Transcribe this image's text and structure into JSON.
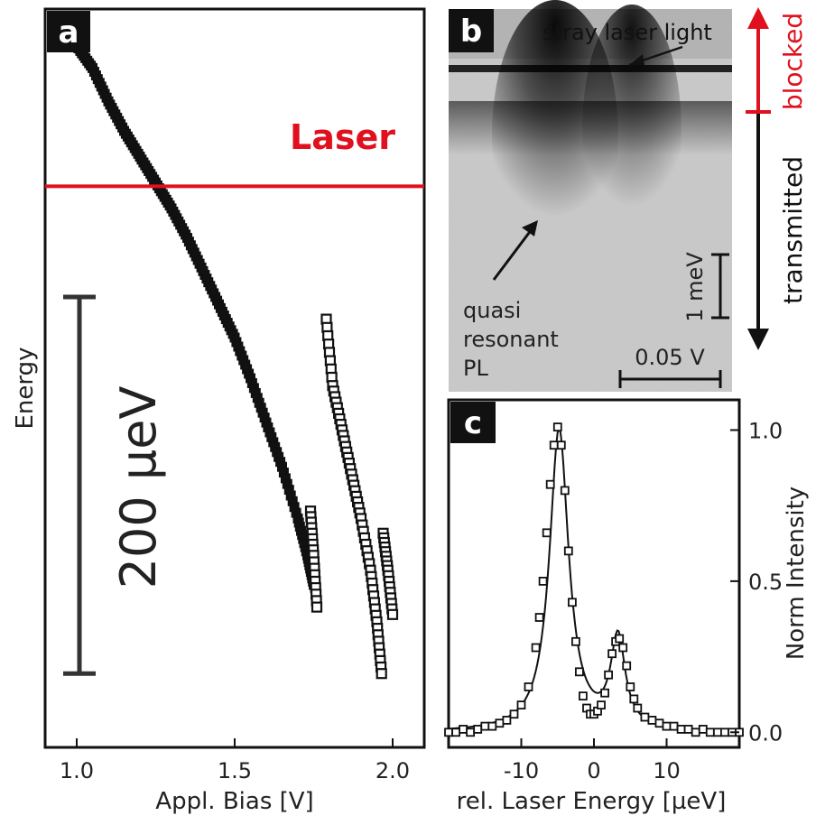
{
  "colors": {
    "laser": "#e0101e",
    "ink": "#111111",
    "blocked": "#e0101e",
    "transmitted": "#111111"
  },
  "panels": {
    "a": {
      "letter": "a"
    },
    "b": {
      "letter": "b"
    },
    "c": {
      "letter": "c"
    }
  },
  "chart_data": [
    {
      "id": "a",
      "type": "scatter",
      "xlabel": "Appl. Bias [V]",
      "ylabel": "Energy",
      "xlim": [
        0.9,
        2.1
      ],
      "ylim": [
        0,
        1
      ],
      "xticks": [
        1.0,
        1.5,
        2.0
      ],
      "xtick_labels": [
        "1.0",
        "1.5",
        "2.0"
      ],
      "annotations": {
        "laser_label": "Laser",
        "laser_level": 0.76,
        "scalebar_label": "200 µeV",
        "scalebar_range": [
          0.1,
          0.61
        ]
      },
      "series": [
        {
          "style": "filled",
          "x": [
            1.0,
            1.05,
            1.1,
            1.15,
            1.2,
            1.25,
            1.3,
            1.35,
            1.4,
            1.45,
            1.5,
            1.55,
            1.6,
            1.65,
            1.7,
            1.73,
            1.75
          ],
          "y": [
            0.95,
            0.92,
            0.875,
            0.835,
            0.8,
            0.765,
            0.73,
            0.69,
            0.645,
            0.6,
            0.555,
            0.5,
            0.44,
            0.38,
            0.31,
            0.26,
            0.22
          ]
        },
        {
          "style": "open",
          "x": [
            1.74,
            1.75,
            1.76
          ],
          "y": [
            0.32,
            0.26,
            0.19
          ]
        },
        {
          "style": "open",
          "x": [
            1.79,
            1.81,
            1.84,
            1.87,
            1.9,
            1.93,
            1.95,
            1.965
          ],
          "y": [
            0.58,
            0.49,
            0.43,
            0.37,
            0.31,
            0.24,
            0.17,
            0.1
          ]
        },
        {
          "style": "open",
          "x": [
            1.97,
            1.985,
            2.0
          ],
          "y": [
            0.29,
            0.24,
            0.18
          ]
        }
      ]
    },
    {
      "id": "b",
      "type": "heatmap",
      "annotations": {
        "stray": "stray laser light",
        "quasi": [
          "quasi",
          "resonant",
          "PL"
        ],
        "energy_scale": "1 meV",
        "voltage_scale": "0.05 V",
        "blocked": "blocked",
        "transmitted": "transmitted"
      }
    },
    {
      "id": "c",
      "type": "scatter",
      "xlabel": "rel. Laser Energy [µeV]",
      "ylabel": "Norm Intensity",
      "xlim": [
        -20,
        20
      ],
      "ylim": [
        -0.05,
        1.1
      ],
      "xticks": [
        -10,
        0,
        10
      ],
      "xtick_labels": [
        "-10",
        "0",
        "10"
      ],
      "yticks": [
        0.0,
        0.5,
        1.0
      ],
      "ytick_labels": [
        "0.0",
        "0.5",
        "1.0"
      ],
      "fit": {
        "peaks": [
          {
            "x0": -4.8,
            "amp": 1.0,
            "width": 3.2
          },
          {
            "x0": 3.3,
            "amp": 0.3,
            "width": 2.4
          }
        ],
        "baseline": 0.0
      },
      "series": [
        {
          "name": "",
          "style": "open",
          "x": [
            -20,
            -19,
            -18,
            -17,
            -16,
            -15,
            -14,
            -13,
            -12,
            -11,
            -10,
            -9,
            -8,
            -7.5,
            -7,
            -6.5,
            -6,
            -5.5,
            -5,
            -4.5,
            -4,
            -3.5,
            -3,
            -2.5,
            -2,
            -1.5,
            -1,
            -0.5,
            0,
            0.5,
            1,
            1.5,
            2,
            2.5,
            3,
            3.5,
            4,
            4.5,
            5,
            5.5,
            6,
            7,
            8,
            9,
            10,
            11,
            12,
            13,
            14,
            15,
            16,
            17,
            18,
            19,
            20
          ],
          "y": [
            0.0,
            0.0,
            0.01,
            0.0,
            0.01,
            0.02,
            0.02,
            0.03,
            0.04,
            0.06,
            0.09,
            0.15,
            0.28,
            0.38,
            0.5,
            0.66,
            0.82,
            0.95,
            1.01,
            0.95,
            0.8,
            0.6,
            0.43,
            0.3,
            0.2,
            0.12,
            0.08,
            0.06,
            0.06,
            0.07,
            0.09,
            0.13,
            0.19,
            0.26,
            0.3,
            0.31,
            0.28,
            0.22,
            0.15,
            0.11,
            0.08,
            0.05,
            0.04,
            0.03,
            0.02,
            0.02,
            0.01,
            0.01,
            0.0,
            0.01,
            0.0,
            0.0,
            0.0,
            0.0,
            0.0
          ]
        }
      ]
    }
  ]
}
